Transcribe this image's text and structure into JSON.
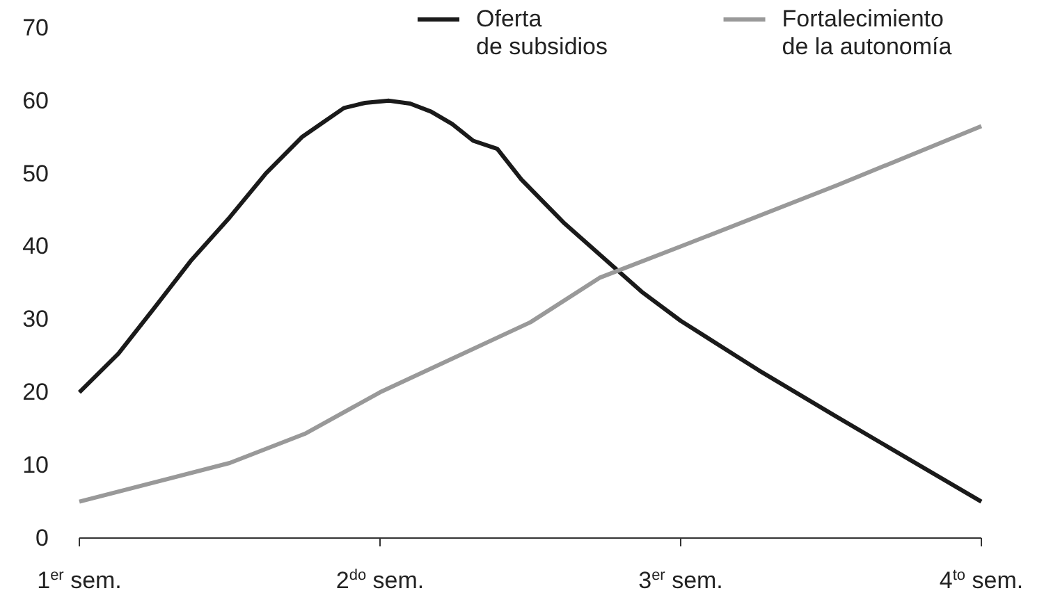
{
  "chart_data": {
    "type": "line",
    "xlim": [
      1,
      4
    ],
    "xticks": [
      {
        "value": 1,
        "label": "1$^{er}$ sem."
      },
      {
        "value": 2,
        "label": "2$^{do}$ sem."
      },
      {
        "value": 3,
        "label": "3$^{er}$ sem."
      },
      {
        "value": 4,
        "label": "4$^{to}$ sem."
      }
    ],
    "ylim": [
      0,
      70
    ],
    "yticks": [
      0,
      10,
      20,
      30,
      40,
      50,
      60,
      70
    ],
    "grid": false,
    "legend": "top right",
    "marker": "none",
    "line_style": "solid",
    "series": [
      {
        "name": "Oferta\nde subsidios",
        "color": "#1a1a1a",
        "x": [
          1,
          1.13,
          1.25,
          1.37,
          1.5,
          1.62,
          1.74,
          1.81,
          1.88,
          1.95,
          2.03,
          2.1,
          2.17,
          2.24,
          2.31,
          2.39,
          2.47,
          2.61,
          2.87,
          3,
          3.26,
          3.52,
          4
        ],
        "values": [
          20,
          25.3,
          31.6,
          38,
          44,
          50,
          55,
          57,
          59,
          59.7,
          60,
          59.6,
          58.5,
          56.8,
          54.5,
          53.4,
          49.2,
          43.3,
          33.8,
          29.8,
          23,
          16.6,
          5
        ]
      },
      {
        "name": "Fortalecimiento\nde la autonomía",
        "color": "#999999",
        "x": [
          1,
          1.5,
          1.75,
          2,
          2.5,
          2.73,
          3,
          3.52,
          4
        ],
        "values": [
          5,
          10.3,
          14.3,
          20,
          29.6,
          35.7,
          40,
          48.4,
          56.5
        ]
      }
    ]
  }
}
